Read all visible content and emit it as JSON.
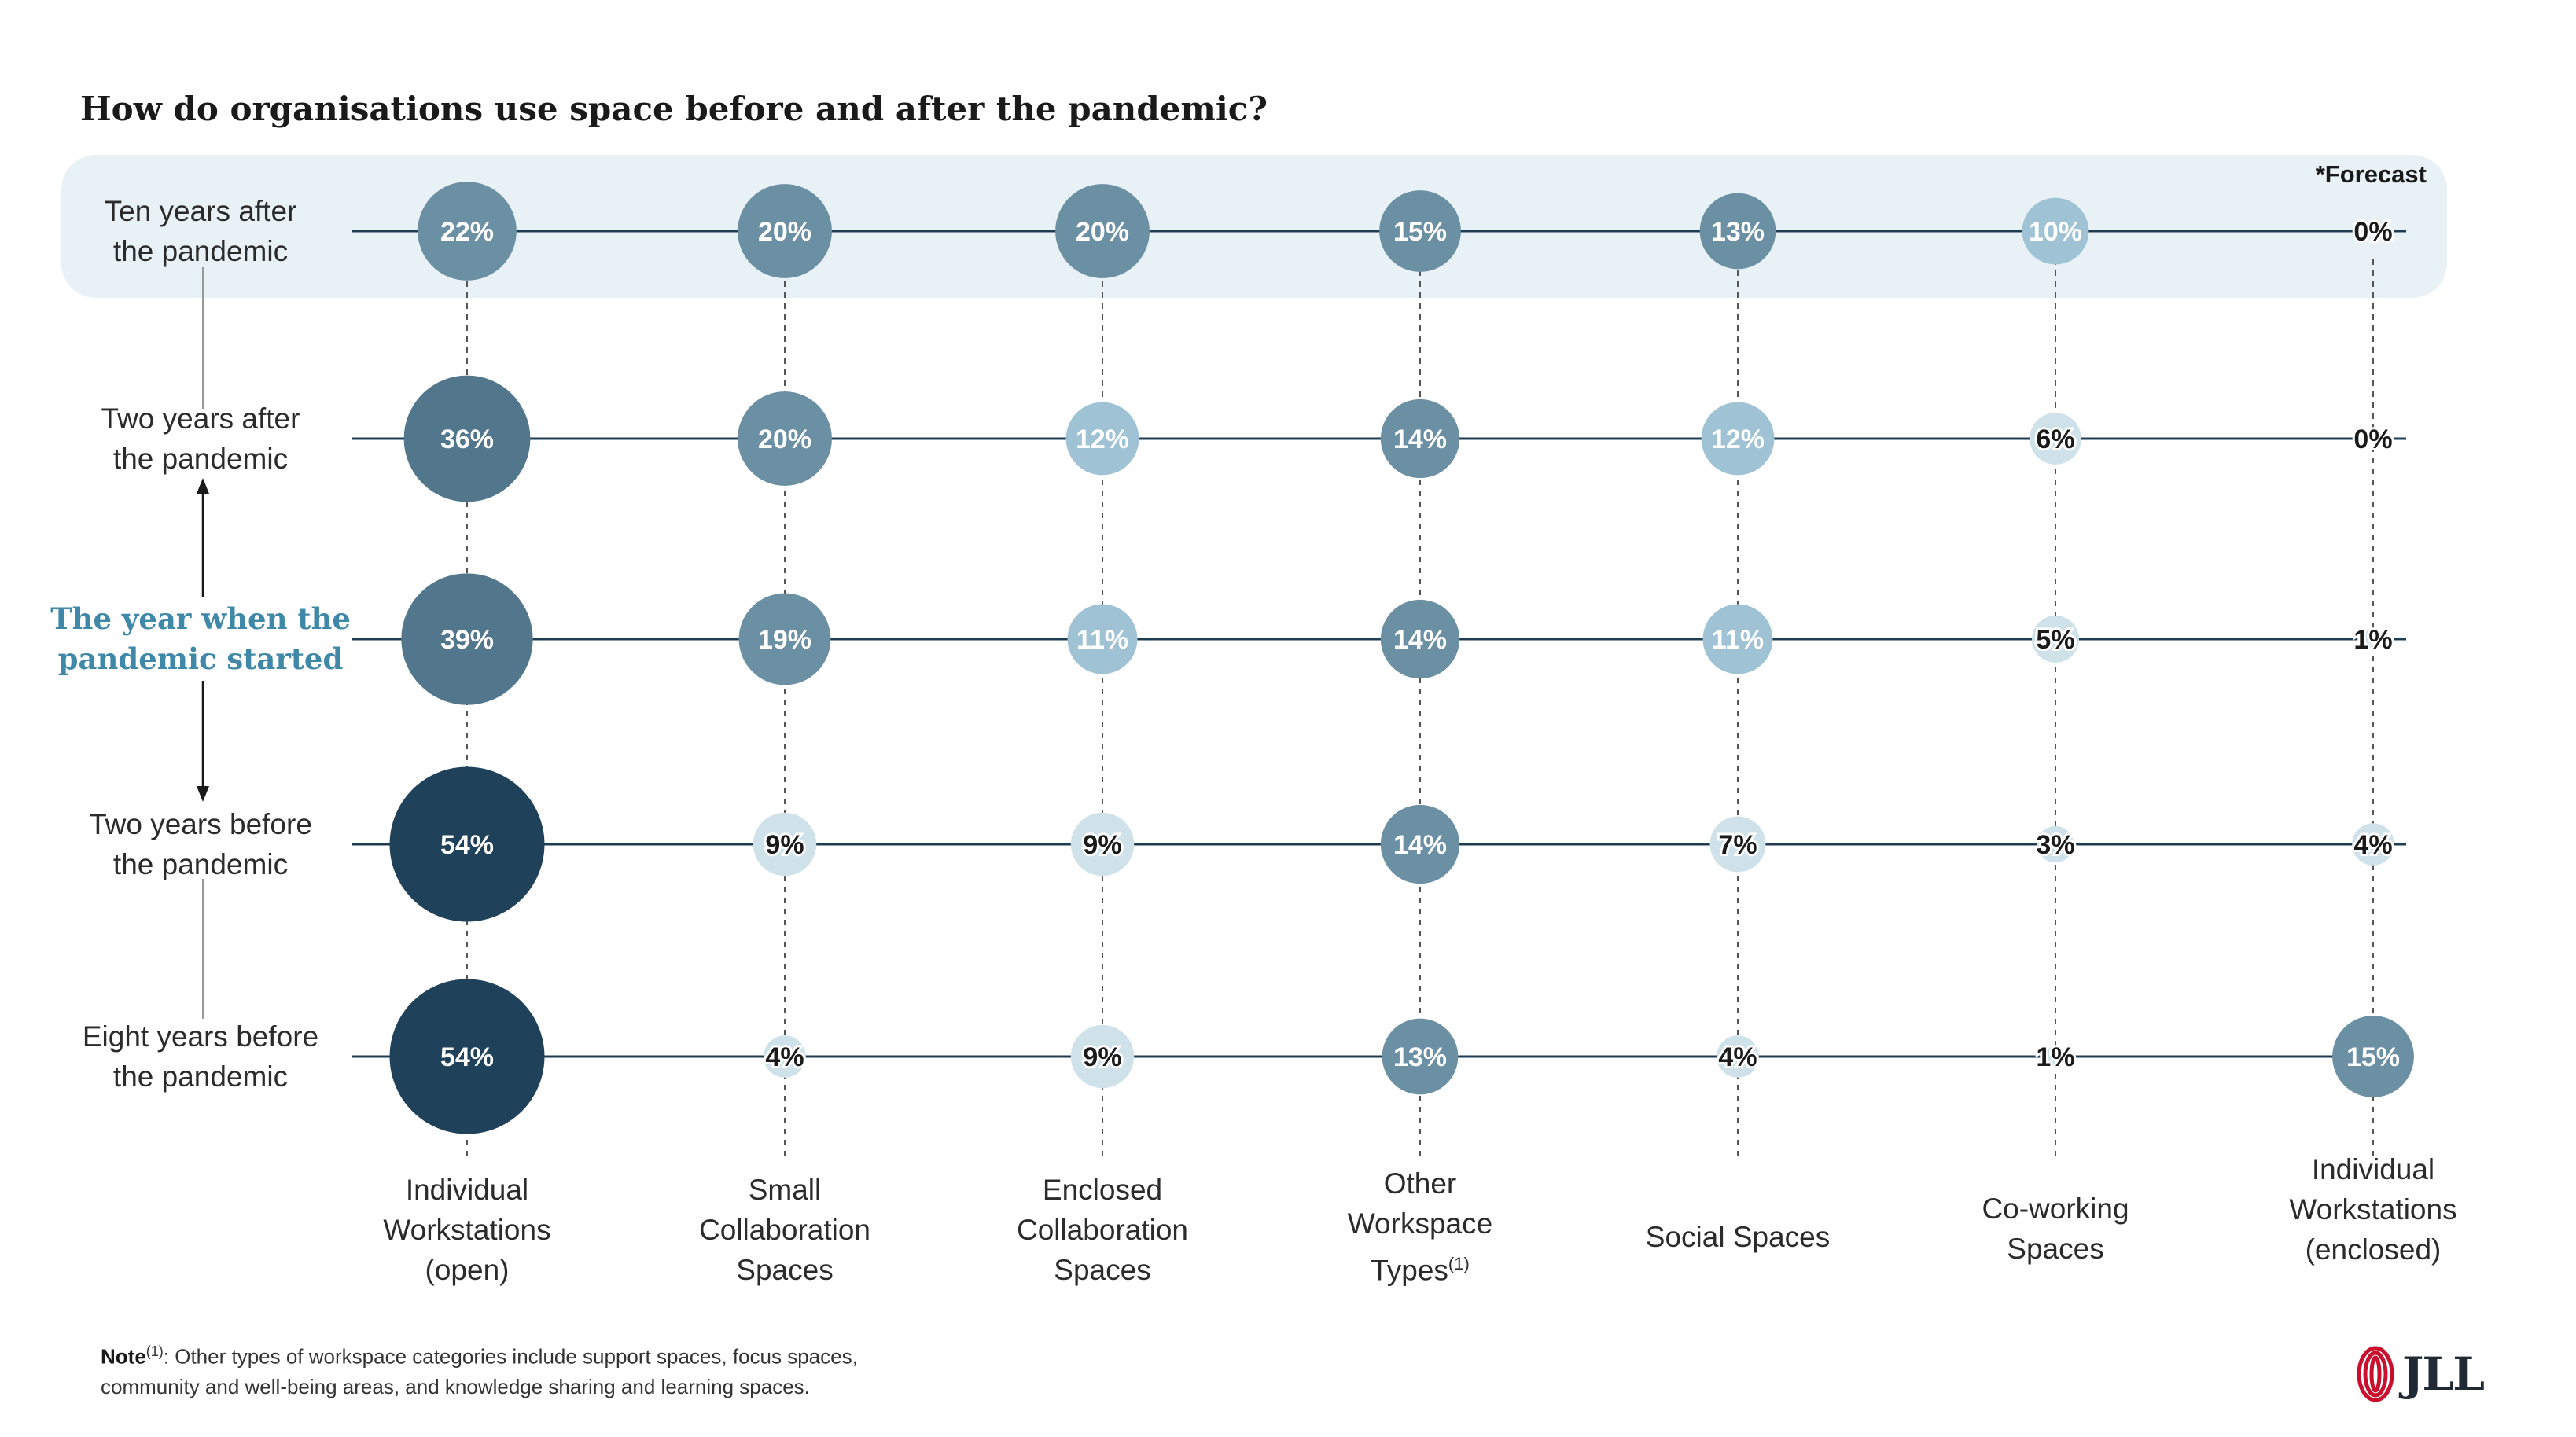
{
  "title": "How do organisations use space before and after the pandemic?",
  "forecast_note": "*Forecast",
  "rows": [
    {
      "label_lines": [
        "Ten years after",
        "the pandemic"
      ],
      "highlight": false
    },
    {
      "label_lines": [
        "Two years after",
        "the pandemic"
      ],
      "highlight": false
    },
    {
      "label_lines": [
        "The year when the",
        "pandemic started"
      ],
      "highlight": true
    },
    {
      "label_lines": [
        "Two years before",
        "the pandemic"
      ],
      "highlight": false
    },
    {
      "label_lines": [
        "Eight years before",
        "the pandemic"
      ],
      "highlight": false
    }
  ],
  "columns": [
    {
      "label": "Individual\nWorkstations\n(open)",
      "sup": ""
    },
    {
      "label": "Small\nCollaboration\nSpaces",
      "sup": ""
    },
    {
      "label": "Enclosed\nCollaboration\nSpaces",
      "sup": ""
    },
    {
      "label": "Other\nWorkspace\nTypes",
      "sup": "(1)"
    },
    {
      "label": "Social Spaces",
      "sup": ""
    },
    {
      "label": "Co-working\nSpaces",
      "sup": ""
    },
    {
      "label": "Individual\nWorkstations\n(enclosed)",
      "sup": ""
    }
  ],
  "chart_data": {
    "type": "bubble-matrix",
    "title": "How do organisations use space before and after the pandemic?",
    "unit": "%",
    "categories": [
      "Individual Workstations (open)",
      "Small Collaboration Spaces",
      "Enclosed Collaboration Spaces",
      "Other Workspace Types(1)",
      "Social Spaces",
      "Co-working Spaces",
      "Individual Workstations (enclosed)"
    ],
    "series": [
      {
        "name": "Ten years after the pandemic",
        "forecast": true,
        "values": [
          22,
          20,
          20,
          15,
          13,
          10,
          0
        ]
      },
      {
        "name": "Two years after the pandemic",
        "forecast": false,
        "values": [
          36,
          20,
          12,
          14,
          12,
          6,
          0
        ]
      },
      {
        "name": "The year when the pandemic started",
        "forecast": false,
        "values": [
          39,
          19,
          11,
          14,
          11,
          5,
          1
        ]
      },
      {
        "name": "Two years before the pandemic",
        "forecast": false,
        "values": [
          54,
          9,
          9,
          14,
          7,
          3,
          4
        ]
      },
      {
        "name": "Eight years before the pandemic",
        "forecast": false,
        "values": [
          54,
          4,
          9,
          13,
          4,
          1,
          15
        ]
      }
    ]
  },
  "note": {
    "label": "Note",
    "sup": "(1)",
    "line1": ": Other types of workspace categories include support spaces, focus spaces,",
    "line2": "community and well-being areas, and knowledge sharing and learning spaces."
  },
  "logo": {
    "text": "JLL"
  },
  "colors": {
    "band": "#e8f1f5",
    "line": "#1f3d52",
    "dark": "#1f4159",
    "mid": "#52778c",
    "steel": "#6b8fa3",
    "light": "#9fc3d4",
    "pale": "#cfe2ea",
    "highlight_text": "#3f88a7",
    "logo_red": "#c8102e"
  }
}
